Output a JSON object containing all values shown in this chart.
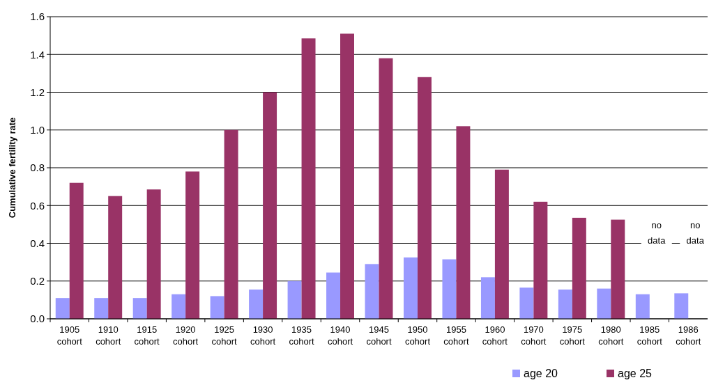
{
  "chart_data": {
    "type": "bar",
    "ylabel": "Cumulative fertility rate",
    "categories": [
      "1905 cohort",
      "1910 cohort",
      "1915 cohort",
      "1920 cohort",
      "1925 cohort",
      "1930 cohort",
      "1935 cohort",
      "1940 cohort",
      "1945 cohort",
      "1950 cohort",
      "1955 cohort",
      "1960 cohort",
      "1970 cohort",
      "1975 cohort",
      "1980 cohort",
      "1985 cohort",
      "1986 cohort"
    ],
    "series": [
      {
        "name": "age 20",
        "color": "#9999ff",
        "values": [
          0.11,
          0.11,
          0.11,
          0.13,
          0.12,
          0.155,
          0.2,
          0.245,
          0.29,
          0.325,
          0.315,
          0.22,
          0.165,
          0.155,
          0.16,
          0.13,
          0.135
        ]
      },
      {
        "name": "age 25",
        "color": "#993366",
        "values": [
          0.72,
          0.65,
          0.685,
          0.78,
          1.0,
          1.2,
          1.485,
          1.51,
          1.38,
          1.28,
          1.02,
          0.79,
          0.62,
          0.535,
          0.525,
          null,
          null
        ]
      }
    ],
    "ylim": [
      0,
      1.6
    ],
    "yticks": [
      {
        "value": 0,
        "label": "0.0"
      },
      {
        "value": 0.2,
        "label": "0.2"
      },
      {
        "value": 0.4,
        "label": "0.4"
      },
      {
        "value": 0.6,
        "label": "0.6"
      },
      {
        "value": 0.8,
        "label": "0.8"
      },
      {
        "value": 1,
        "label": "1.0"
      },
      {
        "value": 1.2,
        "label": "1.2"
      },
      {
        "value": 1.4,
        "label": "1.4"
      },
      {
        "value": 1.6,
        "label": "1.6"
      }
    ],
    "grid": "y",
    "legend": "bottom right",
    "annotations": [
      "no data",
      "no data"
    ]
  }
}
